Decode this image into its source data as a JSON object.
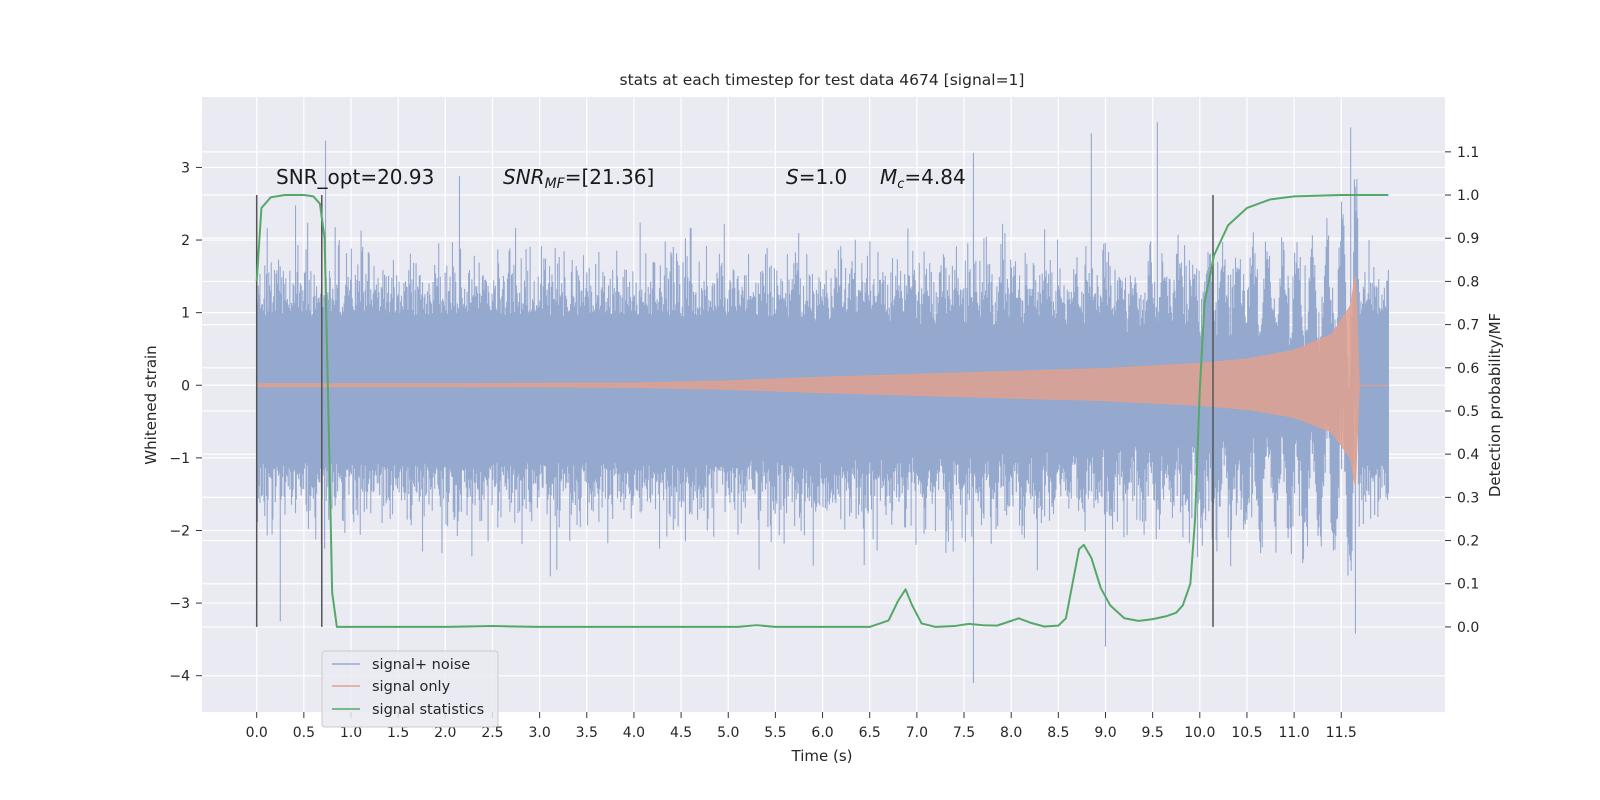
{
  "chart_data": {
    "type": "line",
    "title": "stats at each timestep for test data 4674 [signal=1]",
    "xlabel": "Time (s)",
    "ylabel_left": "Whitened strain",
    "ylabel_right": "Detection probability/MF",
    "xlim": [
      -0.58,
      12.6
    ],
    "ylim_left": [
      -4.5,
      3.97
    ],
    "ylim_right": [
      -0.197,
      1.227
    ],
    "x_ticks": [
      "0.0",
      "0.5",
      "1.0",
      "1.5",
      "2.0",
      "2.5",
      "3.0",
      "3.5",
      "4.0",
      "4.5",
      "5.0",
      "5.5",
      "6.0",
      "6.5",
      "7.0",
      "7.5",
      "8.0",
      "8.5",
      "9.0",
      "9.5",
      "10.0",
      "10.5",
      "11.0",
      "11.5"
    ],
    "y_left_ticks": [
      "3",
      "2",
      "1",
      "0",
      "−1",
      "−2",
      "−3",
      "−4"
    ],
    "y_right_ticks": [
      "1.1",
      "1.0",
      "0.9",
      "0.8",
      "0.7",
      "0.6",
      "0.5",
      "0.4",
      "0.3",
      "0.2",
      "0.1",
      "0.0"
    ],
    "grid": true,
    "legend_position": "lower-left",
    "annotations": {
      "snr_opt": "SNR_opt=20.93",
      "snr_mf_main": "SNR",
      "snr_mf_sub": "MF",
      "snr_mf_value": "=[21.36]",
      "s_symbol": "S",
      "s_value": "=1.0",
      "mc_symbol": "M",
      "mc_sub": "c",
      "mc_value": "=4.84"
    },
    "vertical_markers_s": [
      0.0,
      0.69,
      10.14
    ],
    "series": [
      {
        "name": "signal+ noise",
        "color": "#95a9cf",
        "axis": "left",
        "t_range_s": [
          0.0,
          12.0
        ],
        "envelope_typical": [
          -1.45,
          1.3
        ],
        "extremes": [
          {
            "t": 0.25,
            "v": -3.25
          },
          {
            "t": 0.73,
            "v": 3.37
          },
          {
            "t": 2.15,
            "v": 2.88
          },
          {
            "t": 7.6,
            "v": 3.2
          },
          {
            "t": 7.6,
            "v": -4.1
          },
          {
            "t": 8.85,
            "v": 3.47
          },
          {
            "t": 9.0,
            "v": -3.6
          },
          {
            "t": 9.55,
            "v": 3.62
          },
          {
            "t": 11.6,
            "v": 3.55
          },
          {
            "t": 11.65,
            "v": -3.42
          }
        ]
      },
      {
        "name": "signal only",
        "color": "#e0a18f",
        "axis": "left",
        "amplitude_envelope": [
          [
            0.0,
            0.02
          ],
          [
            2.0,
            0.02
          ],
          [
            4.0,
            0.03
          ],
          [
            5.0,
            0.06
          ],
          [
            6.0,
            0.11
          ],
          [
            7.0,
            0.15
          ],
          [
            8.0,
            0.19
          ],
          [
            9.0,
            0.23
          ],
          [
            10.0,
            0.3
          ],
          [
            10.5,
            0.36
          ],
          [
            11.0,
            0.48
          ],
          [
            11.4,
            0.7
          ],
          [
            11.6,
            1.1
          ],
          [
            11.65,
            1.52
          ],
          [
            11.69,
            0.0
          ],
          [
            12.0,
            0.0
          ]
        ]
      },
      {
        "name": "signal statistics",
        "color": "#55a868",
        "axis": "right",
        "points": [
          [
            0.0,
            0.8
          ],
          [
            0.05,
            0.97
          ],
          [
            0.15,
            0.995
          ],
          [
            0.3,
            1.0
          ],
          [
            0.5,
            1.0
          ],
          [
            0.6,
            0.997
          ],
          [
            0.67,
            0.98
          ],
          [
            0.72,
            0.9
          ],
          [
            0.77,
            0.4
          ],
          [
            0.8,
            0.08
          ],
          [
            0.85,
            0.0
          ],
          [
            1.0,
            0.0
          ],
          [
            2.0,
            0.0
          ],
          [
            2.5,
            0.002
          ],
          [
            3.0,
            0.0
          ],
          [
            4.0,
            0.0
          ],
          [
            5.0,
            0.0
          ],
          [
            5.1,
            0.0
          ],
          [
            5.3,
            0.004
          ],
          [
            5.5,
            0.0
          ],
          [
            6.0,
            0.0
          ],
          [
            6.5,
            0.0
          ],
          [
            6.7,
            0.015
          ],
          [
            6.8,
            0.06
          ],
          [
            6.88,
            0.087
          ],
          [
            6.95,
            0.05
          ],
          [
            7.05,
            0.008
          ],
          [
            7.2,
            0.0
          ],
          [
            7.4,
            0.002
          ],
          [
            7.55,
            0.007
          ],
          [
            7.7,
            0.004
          ],
          [
            7.85,
            0.003
          ],
          [
            8.0,
            0.014
          ],
          [
            8.08,
            0.02
          ],
          [
            8.2,
            0.01
          ],
          [
            8.35,
            0.001
          ],
          [
            8.5,
            0.003
          ],
          [
            8.58,
            0.02
          ],
          [
            8.65,
            0.1
          ],
          [
            8.72,
            0.18
          ],
          [
            8.77,
            0.19
          ],
          [
            8.85,
            0.16
          ],
          [
            8.95,
            0.09
          ],
          [
            9.05,
            0.05
          ],
          [
            9.2,
            0.02
          ],
          [
            9.35,
            0.014
          ],
          [
            9.5,
            0.018
          ],
          [
            9.65,
            0.025
          ],
          [
            9.75,
            0.033
          ],
          [
            9.82,
            0.05
          ],
          [
            9.9,
            0.1
          ],
          [
            9.95,
            0.25
          ],
          [
            10.0,
            0.55
          ],
          [
            10.05,
            0.75
          ],
          [
            10.15,
            0.86
          ],
          [
            10.3,
            0.93
          ],
          [
            10.5,
            0.97
          ],
          [
            10.75,
            0.99
          ],
          [
            11.0,
            0.997
          ],
          [
            11.5,
            1.0
          ],
          [
            12.0,
            1.0
          ]
        ]
      }
    ]
  }
}
